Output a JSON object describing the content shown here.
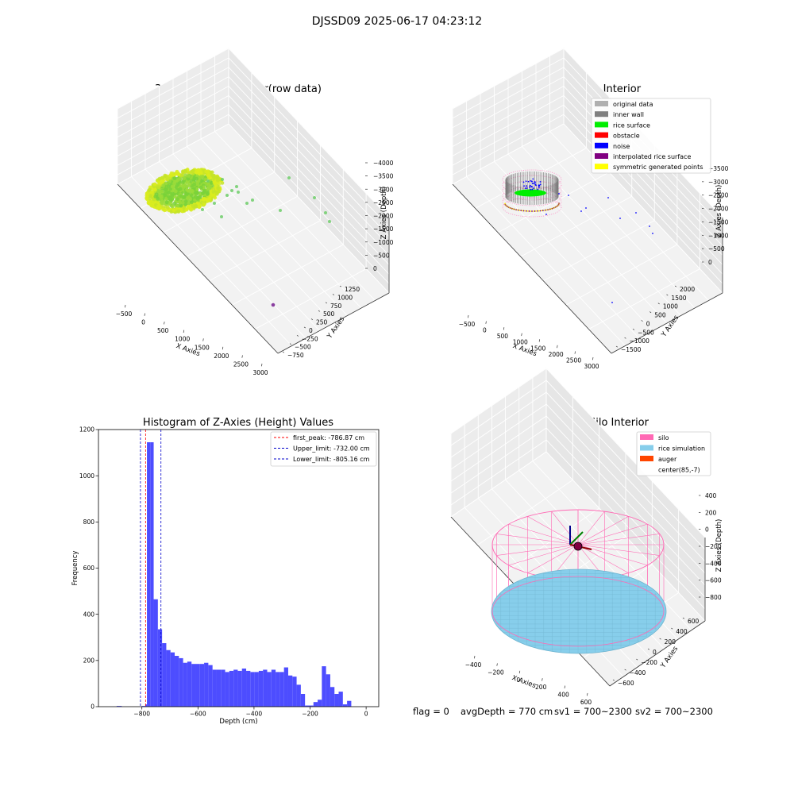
{
  "figure_title": "DJSSD09 2025-06-17 04:23:12",
  "footer": {
    "flag": "flag = 0",
    "avg": "avgDepth = 770 cm",
    "sv1": "sv1 = 700~2300",
    "sv2": "sv2 = 700~2300"
  },
  "colors": {
    "hist_bar": "#4d4dff",
    "first_peak": "#ff0000",
    "limits": "#0000cc",
    "silo": "#ff69b4",
    "rice_sim": "#87ceeb",
    "auger": "#ff4500"
  },
  "chart_data": [
    {
      "id": "raw3d",
      "type": "scatter",
      "title": "3D Plot of Silo Interior(row data)",
      "xlabel": "X Axies",
      "ylabel": "Y Axies",
      "zlabel": "Z Axies (Depth)",
      "x_ticks": [
        "−500",
        "0",
        "500",
        "1000",
        "1500",
        "2000",
        "2500",
        "3000"
      ],
      "y_ticks": [
        "−750",
        "−500",
        "−250",
        "0",
        "250",
        "500",
        "750",
        "1000",
        "1250"
      ],
      "z_ticks": [
        "0",
        "−500",
        "−1000",
        "−1500",
        "−2000",
        "−2500",
        "−3000",
        "−3500",
        "−4000"
      ]
    },
    {
      "id": "classify3d",
      "type": "scatter",
      "title": "3D classify of Silo Interior",
      "xlabel": "X Axies",
      "ylabel": "Y Axies",
      "zlabel": "Z Axies (Depth)",
      "x_ticks": [
        "−500",
        "0",
        "500",
        "1000",
        "1500",
        "2000",
        "2500",
        "3000"
      ],
      "y_ticks": [
        "−1500",
        "−1000",
        "−500",
        "0",
        "500",
        "1000",
        "1500",
        "2000"
      ],
      "z_ticks": [
        "0",
        "−500",
        "−1000",
        "−1500",
        "−2000",
        "−2500",
        "−3000",
        "−3500"
      ],
      "legend_position": "upper-right",
      "legend": [
        {
          "label": "original data",
          "color": "#b0b0b0"
        },
        {
          "label": "inner wall",
          "color": "#808080"
        },
        {
          "label": "rice surface",
          "color": "#00ee00"
        },
        {
          "label": "obstacle",
          "color": "#ff0000"
        },
        {
          "label": "noise",
          "color": "#0000ff"
        },
        {
          "label": "interpolated rice surface",
          "color": "#800080"
        },
        {
          "label": "symmetric generated points",
          "color": "#ffff00"
        }
      ]
    },
    {
      "id": "hist",
      "type": "bar",
      "title": "Histogram of Z-Axies (Height) Values",
      "xlabel": "Depth (cm)",
      "ylabel": "Frequency",
      "xlim": [
        -955,
        45
      ],
      "ylim": [
        0,
        1200
      ],
      "x_ticks": [
        -800,
        -600,
        -400,
        -200,
        0
      ],
      "y_ticks": [
        0,
        200,
        400,
        600,
        800,
        1000,
        1200
      ],
      "bins": [
        {
          "x0": -890,
          "x1": -872,
          "count": 3
        },
        {
          "x0": -800,
          "x1": -788,
          "count": 3
        },
        {
          "x0": -788,
          "x1": -782,
          "count": 10
        },
        {
          "x0": -782,
          "x1": -770,
          "count": 1145
        },
        {
          "x0": -770,
          "x1": -758,
          "count": 1145
        },
        {
          "x0": -758,
          "x1": -743,
          "count": 465
        },
        {
          "x0": -743,
          "x1": -728,
          "count": 335
        },
        {
          "x0": -728,
          "x1": -713,
          "count": 275
        },
        {
          "x0": -713,
          "x1": -698,
          "count": 245
        },
        {
          "x0": -698,
          "x1": -683,
          "count": 235
        },
        {
          "x0": -683,
          "x1": -668,
          "count": 220
        },
        {
          "x0": -668,
          "x1": -653,
          "count": 210
        },
        {
          "x0": -653,
          "x1": -638,
          "count": 190
        },
        {
          "x0": -638,
          "x1": -623,
          "count": 195
        },
        {
          "x0": -623,
          "x1": -608,
          "count": 185
        },
        {
          "x0": -608,
          "x1": -593,
          "count": 185
        },
        {
          "x0": -593,
          "x1": -578,
          "count": 185
        },
        {
          "x0": -578,
          "x1": -563,
          "count": 190
        },
        {
          "x0": -563,
          "x1": -548,
          "count": 180
        },
        {
          "x0": -548,
          "x1": -533,
          "count": 160
        },
        {
          "x0": -533,
          "x1": -518,
          "count": 160
        },
        {
          "x0": -518,
          "x1": -503,
          "count": 160
        },
        {
          "x0": -503,
          "x1": -488,
          "count": 150
        },
        {
          "x0": -488,
          "x1": -473,
          "count": 155
        },
        {
          "x0": -473,
          "x1": -458,
          "count": 160
        },
        {
          "x0": -458,
          "x1": -443,
          "count": 155
        },
        {
          "x0": -443,
          "x1": -428,
          "count": 165
        },
        {
          "x0": -428,
          "x1": -413,
          "count": 155
        },
        {
          "x0": -413,
          "x1": -398,
          "count": 150
        },
        {
          "x0": -398,
          "x1": -383,
          "count": 150
        },
        {
          "x0": -383,
          "x1": -368,
          "count": 155
        },
        {
          "x0": -368,
          "x1": -353,
          "count": 160
        },
        {
          "x0": -353,
          "x1": -338,
          "count": 150
        },
        {
          "x0": -338,
          "x1": -323,
          "count": 160
        },
        {
          "x0": -323,
          "x1": -308,
          "count": 150
        },
        {
          "x0": -308,
          "x1": -293,
          "count": 150
        },
        {
          "x0": -293,
          "x1": -278,
          "count": 170
        },
        {
          "x0": -278,
          "x1": -263,
          "count": 135
        },
        {
          "x0": -263,
          "x1": -248,
          "count": 130
        },
        {
          "x0": -248,
          "x1": -233,
          "count": 95
        },
        {
          "x0": -233,
          "x1": -218,
          "count": 55
        },
        {
          "x0": -218,
          "x1": -203,
          "count": 5
        },
        {
          "x0": -203,
          "x1": -188,
          "count": 5
        },
        {
          "x0": -188,
          "x1": -173,
          "count": 20
        },
        {
          "x0": -173,
          "x1": -158,
          "count": 30
        },
        {
          "x0": -158,
          "x1": -143,
          "count": 175
        },
        {
          "x0": -143,
          "x1": -128,
          "count": 140
        },
        {
          "x0": -128,
          "x1": -113,
          "count": 85
        },
        {
          "x0": -113,
          "x1": -98,
          "count": 55
        },
        {
          "x0": -98,
          "x1": -83,
          "count": 65
        },
        {
          "x0": -83,
          "x1": -68,
          "count": 10
        },
        {
          "x0": -68,
          "x1": -53,
          "count": 25
        }
      ],
      "vlines": [
        {
          "label": "first_peak: -786.87 cm",
          "x": -786.87,
          "color": "#ff0000"
        },
        {
          "label": "Upper_limit: -732.00 cm",
          "x": -732.0,
          "color": "#0000cc"
        },
        {
          "label": "Lower_limit: -805.16 cm",
          "x": -805.16,
          "color": "#0000cc"
        }
      ],
      "legend_position": "upper-right"
    },
    {
      "id": "sim3d",
      "type": "scatter",
      "title": "3D simulation of Silo Interior",
      "xlabel": "X Axies",
      "ylabel": "Y Axies",
      "zlabel": "Z Axies (Depth)",
      "x_ticks": [
        "−400",
        "−200",
        "0",
        "200",
        "400",
        "600"
      ],
      "y_ticks": [
        "−600",
        "−400",
        "−200",
        "0",
        "200",
        "400",
        "600"
      ],
      "z_ticks": [
        "400",
        "200",
        "0",
        "−200",
        "−400",
        "−600",
        "−800"
      ],
      "legend_position": "upper-right",
      "legend": [
        {
          "label": "silo",
          "color": "#ff69b4"
        },
        {
          "label": "rice simulation",
          "color": "#87ceeb"
        },
        {
          "label": "auger",
          "color": "#ff4500"
        },
        {
          "label": "center(85,-7)",
          "color": ""
        }
      ]
    }
  ]
}
